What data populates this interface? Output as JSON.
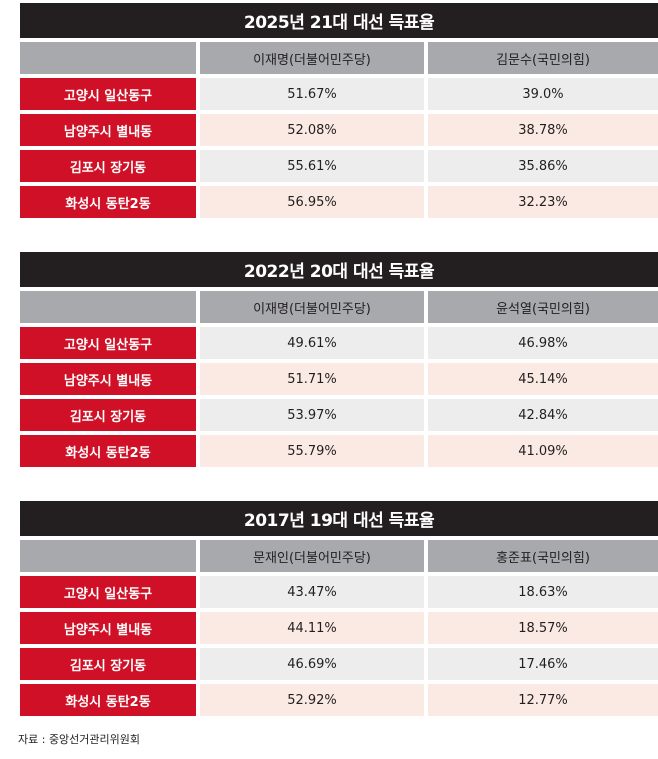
{
  "tables": [
    {
      "title": "2025년 21대 대선 득표율",
      "headers": [
        "이재명(더불어민주당)",
        "김문수(국민의힘)"
      ],
      "rows": [
        {
          "district": "고양시 일산동구",
          "values": [
            "51.67%",
            "39.0%"
          ]
        },
        {
          "district": "남양주시 별내동",
          "values": [
            "52.08%",
            "38.78%"
          ]
        },
        {
          "district": "김포시 장기동",
          "values": [
            "55.61%",
            "35.86%"
          ]
        },
        {
          "district": "화성시 동탄2동",
          "values": [
            "56.95%",
            "32.23%"
          ]
        }
      ]
    },
    {
      "title": "2022년 20대 대선 득표율",
      "headers": [
        "이재명(더불어민주당)",
        "윤석열(국민의힘)"
      ],
      "rows": [
        {
          "district": "고양시 일산동구",
          "values": [
            "49.61%",
            "46.98%"
          ]
        },
        {
          "district": "남양주시 별내동",
          "values": [
            "51.71%",
            "45.14%"
          ]
        },
        {
          "district": "김포시 장기동",
          "values": [
            "53.97%",
            "42.84%"
          ]
        },
        {
          "district": "화성시 동탄2동",
          "values": [
            "55.79%",
            "41.09%"
          ]
        }
      ]
    },
    {
      "title": "2017년 19대 대선 득표율",
      "headers": [
        "문재인(더불어민주당)",
        "홍준표(국민의힘)"
      ],
      "rows": [
        {
          "district": "고양시 일산동구",
          "values": [
            "43.47%",
            "18.63%"
          ]
        },
        {
          "district": "남양주시 별내동",
          "values": [
            "44.11%",
            "18.57%"
          ]
        },
        {
          "district": "김포시 장기동",
          "values": [
            "46.69%",
            "17.46%"
          ]
        },
        {
          "district": "화성시 동탄2동",
          "values": [
            "52.92%",
            "12.77%"
          ]
        }
      ]
    }
  ],
  "source": "자료 : 중앙선거관리위원회",
  "colors": {
    "title_bg": "#231f20",
    "label_bg": "#cf1026",
    "header_bg": "#a7a9ac",
    "row_gray": "#ededed",
    "row_pink": "#fbeae3"
  }
}
